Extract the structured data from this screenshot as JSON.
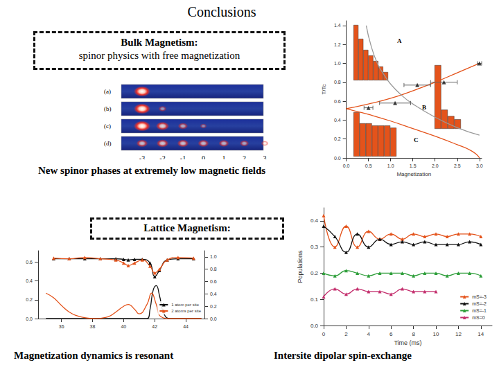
{
  "title": "Conclusions",
  "sections": [
    {
      "heading": "Bulk Magnetism:",
      "text": "spinor physics with free magnetization"
    },
    {
      "heading": "Lattice Magnetism:"
    }
  ],
  "captions": [
    "New spinor phases at extremely low magnetic fields",
    "Magnetization dynamics is resonant",
    "Intersite dipolar spin-exchange"
  ],
  "absorption_images": {
    "positions": [
      -3,
      -2,
      -1,
      0,
      1,
      2,
      3
    ],
    "rows": [
      {
        "label": "(a)",
        "intensities": [
          1,
          0,
          0,
          0,
          0,
          0,
          0
        ]
      },
      {
        "label": "(b)",
        "intensities": [
          1,
          0.25,
          0,
          0,
          0,
          0,
          0
        ]
      },
      {
        "label": "(c)",
        "intensities": [
          1,
          0.7,
          0.4,
          0.15,
          0,
          0,
          0
        ]
      },
      {
        "label": "(d)",
        "intensities": [
          0.55,
          0.6,
          0.55,
          0.5,
          0.45,
          0.35,
          0.2
        ]
      }
    ]
  },
  "chart_data": [
    {
      "type": "line",
      "x_label": "Magnetization",
      "y_label": "T/Tc",
      "xlim": [
        0,
        3.05
      ],
      "xticks": [
        {
          "value": 0,
          "label": "0.0"
        },
        0.5,
        {
          "value": 1,
          "label": "1.0"
        },
        1.5,
        {
          "value": 2,
          "label": "2.0"
        },
        2.5,
        {
          "value": 3,
          "label": "3.0"
        }
      ],
      "ylim": [
        0,
        1.45
      ],
      "yticks": [
        {
          "value": 0,
          "label": "0.0"
        },
        0.2,
        0.4,
        0.6,
        0.8,
        {
          "value": 1,
          "label": "1.0"
        },
        1.2,
        1.4
      ],
      "grid": false,
      "series": [
        {
          "type": "line",
          "color": "#e4531b",
          "marker": "none",
          "x": [
            0,
            0.5,
            1,
            1.5,
            2,
            2.5,
            3
          ],
          "values": [
            0.52,
            0.57,
            0.63,
            0.71,
            0.8,
            0.9,
            1.0
          ]
        },
        {
          "type": "line",
          "color": "#e4531b",
          "marker": "none",
          "x": [
            0,
            0.25,
            0.5,
            1,
            1.5,
            2,
            2.5,
            2.8,
            2.95,
            3
          ],
          "values": [
            0.52,
            0.49,
            0.46,
            0.39,
            0.31,
            0.23,
            0.14,
            0.08,
            0.03,
            0
          ]
        },
        {
          "type": "line",
          "color": "#999999",
          "marker": "none",
          "x": [
            0.45,
            0.55,
            0.7,
            0.85,
            1,
            1.25,
            1.5,
            2,
            2.5,
            3
          ],
          "values": [
            1.4,
            1.2,
            1.0,
            0.88,
            0.78,
            0.66,
            0.57,
            0.43,
            0.32,
            0.24
          ]
        },
        {
          "type": "scatter",
          "color": "#111111",
          "marker": "triangle",
          "x": [
            0.5,
            1.1,
            1.6,
            2.2,
            3.0
          ],
          "values": [
            0.53,
            0.58,
            0.77,
            0.8,
            1.0
          ],
          "x_error": [
            0.1,
            0.35,
            0.3,
            0.3,
            0.05
          ]
        }
      ],
      "insets": [
        {
          "label": "A",
          "type": "bar",
          "color": "#e4531b",
          "values": [
            1.0,
            0.75,
            0.55,
            0.45,
            0.35,
            0.25,
            0.15
          ]
        },
        {
          "label": "B",
          "type": "bar",
          "color": "#e4531b",
          "values": [
            1.0,
            0.3,
            0.2,
            0.15
          ]
        },
        {
          "label": "C",
          "type": "bar",
          "color": "#e4531b",
          "values": [
            1.0,
            0.75,
            0.75,
            0.7,
            0.7,
            0.7,
            0.65
          ]
        }
      ]
    },
    {
      "type": "line",
      "xlim": [
        34.5,
        45.2
      ],
      "xticks": [
        36,
        38,
        40,
        42,
        44
      ],
      "ylim": [
        0,
        0.72
      ],
      "yticks": [
        {
          "value": 0,
          "label": "0.0"
        },
        0.2,
        0.4,
        0.6
      ],
      "y2lim": [
        0,
        1.1
      ],
      "y2ticks": [
        {
          "value": 0,
          "label": "0.0"
        },
        0.2,
        0.4,
        0.6,
        0.8,
        {
          "value": 1,
          "label": "1.0"
        }
      ],
      "grid": false,
      "legend": "bottom-right",
      "series": [
        {
          "name": "1 atom per site",
          "color": "#111111",
          "axis": "y2",
          "marker": "triangle",
          "x": [
            35.5,
            36.5,
            37.5,
            38.5,
            39.5,
            40,
            40.3,
            40.7,
            41.2,
            41.7,
            42,
            42.3,
            42.8,
            43.5,
            44.5
          ],
          "values": [
            0.97,
            0.97,
            0.97,
            0.97,
            0.97,
            0.96,
            0.95,
            0.96,
            0.96,
            0.9,
            0.68,
            0.78,
            0.95,
            0.97,
            0.97
          ]
        },
        {
          "name": "2 atoms per site",
          "color": "#e4531b",
          "axis": "y2",
          "marker": "triangle",
          "x": [
            35.5,
            36.5,
            37.5,
            38.5,
            39.5,
            40,
            40.3,
            40.7,
            41.2,
            41.7,
            42,
            42.3,
            42.8,
            43.5,
            44.5
          ],
          "values": [
            0.98,
            0.97,
            0.99,
            0.97,
            0.95,
            0.9,
            0.86,
            0.9,
            0.95,
            0.85,
            0.74,
            0.8,
            0.95,
            0.99,
            0.98
          ]
        },
        {
          "name": "1 atom per site",
          "color": "#111111",
          "marker": "none",
          "x": [
            35,
            37,
            39,
            41,
            41.5,
            41.7,
            41.9,
            42.1,
            42.3,
            42.6,
            43,
            45
          ],
          "values": [
            0,
            0,
            0,
            0,
            0,
            0.1,
            0.3,
            0.35,
            0.25,
            0.05,
            0,
            0
          ]
        },
        {
          "name": "2 atoms per site",
          "color": "#e4531b",
          "marker": "none",
          "x": [
            35,
            35.5,
            36,
            36.5,
            37,
            37.5,
            38,
            39,
            39.5,
            40,
            40.3,
            40.7,
            41,
            41.5,
            41.8,
            42.1,
            42.4,
            43,
            45
          ],
          "values": [
            0.27,
            0.22,
            0.14,
            0.07,
            0.03,
            0.01,
            0,
            0.02,
            0.07,
            0.13,
            0.15,
            0.1,
            0.05,
            0.15,
            0.27,
            0.15,
            0.02,
            0,
            0
          ]
        }
      ]
    },
    {
      "type": "line",
      "x_label": "Time (ms)",
      "y_label": "Populations",
      "x": [
        0,
        1,
        2,
        3,
        4,
        5,
        6,
        7,
        8,
        9,
        10,
        11,
        12,
        13,
        14
      ],
      "xlim": [
        0,
        15
      ],
      "xticks": [
        0,
        2,
        4,
        6,
        8,
        10,
        12,
        14
      ],
      "ylim": [
        0,
        0.45
      ],
      "yticks": [
        {
          "value": 0,
          "label": "0.0"
        },
        0.1,
        0.2,
        0.3,
        0.4
      ],
      "grid": false,
      "legend": "bottom-right",
      "series": [
        {
          "name": "mS=-3",
          "color": "#e4531b",
          "marker": "triangle",
          "values": [
            0.42,
            0.3,
            0.38,
            0.3,
            0.36,
            0.33,
            0.35,
            0.33,
            0.35,
            0.34,
            0.35,
            0.34,
            0.35,
            0.35,
            0.34
          ]
        },
        {
          "name": "mS=-2",
          "color": "#111111",
          "marker": "triangle",
          "values": [
            0.38,
            0.34,
            0.28,
            0.35,
            0.3,
            0.33,
            0.31,
            0.32,
            0.31,
            0.32,
            0.31,
            0.31,
            0.31,
            0.32,
            0.31
          ]
        },
        {
          "name": "mS=-1",
          "color": "#2e9e3a",
          "marker": "triangle",
          "values": [
            0.2,
            0.19,
            0.21,
            0.2,
            0.19,
            0.2,
            0.2,
            0.2,
            0.19,
            0.2,
            0.2,
            0.19,
            0.2,
            0.2,
            0.19
          ]
        },
        {
          "name": "mS=0",
          "color": "#c4306e",
          "marker": "triangle",
          "values": [
            0.11,
            0.14,
            0.12,
            0.14,
            0.13,
            0.13,
            0.12,
            0.14,
            0.13,
            0.13,
            0.13,
            null,
            null,
            null,
            null
          ]
        }
      ]
    }
  ]
}
